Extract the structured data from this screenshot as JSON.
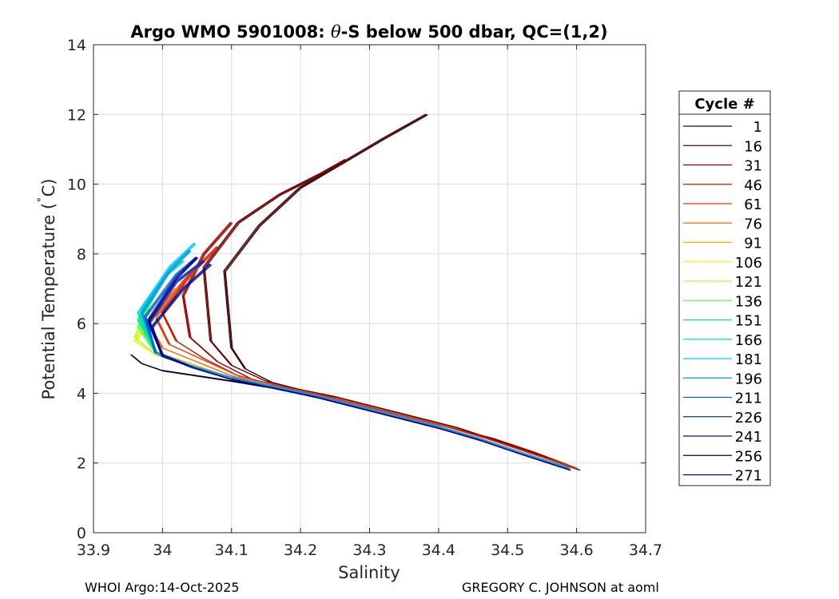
{
  "chart_data": {
    "type": "line",
    "title_prefix": "Argo WMO 5901008: ",
    "title_symbol": "θ",
    "title_suffix": "-S below 500 dbar,  QC=(1,2)",
    "xlabel": "Salinity",
    "ylabel": "Potential Temperature (",
    "ylabel_degree": "˚",
    "ylabel_unit": "C)",
    "xlim": [
      33.9,
      34.7
    ],
    "ylim": [
      0,
      14
    ],
    "xticks": [
      "33.9",
      "34",
      "34.1",
      "34.2",
      "34.3",
      "34.4",
      "34.5",
      "34.6",
      "34.7"
    ],
    "yticks": [
      "0",
      "2",
      "4",
      "6",
      "8",
      "10",
      "12",
      "14"
    ],
    "grid": true,
    "legend": {
      "title": "Cycle #",
      "placement": "right outside",
      "entries": [
        {
          "label": "1",
          "color": "#3b0000"
        },
        {
          "label": "16",
          "color": "#6a0000"
        },
        {
          "label": "31",
          "color": "#9a0000"
        },
        {
          "label": "46",
          "color": "#cc1a00"
        },
        {
          "label": "61",
          "color": "#ee3300"
        },
        {
          "label": "76",
          "color": "#ff6600"
        },
        {
          "label": "91",
          "color": "#ffa500"
        },
        {
          "label": "106",
          "color": "#ffee00"
        },
        {
          "label": "121",
          "color": "#b0ff30"
        },
        {
          "label": "136",
          "color": "#55ff55"
        },
        {
          "label": "151",
          "color": "#00ee88"
        },
        {
          "label": "166",
          "color": "#00ddbb"
        },
        {
          "label": "181",
          "color": "#00ccff"
        },
        {
          "label": "196",
          "color": "#0099dd"
        },
        {
          "label": "211",
          "color": "#0066cc"
        },
        {
          "label": "226",
          "color": "#0033bb"
        },
        {
          "label": "241",
          "color": "#001199"
        },
        {
          "label": "256",
          "color": "#000033"
        },
        {
          "label": "271",
          "color": "#000099"
        }
      ]
    },
    "series": [
      {
        "color": "#3b0000",
        "x": [
          34.604,
          34.56,
          34.5,
          34.44,
          34.38,
          34.32,
          34.26,
          34.2,
          34.16,
          34.12,
          34.1,
          34.09,
          34.14,
          34.2,
          34.26,
          34.32,
          34.383
        ],
        "y": [
          1.8,
          2.1,
          2.5,
          2.9,
          3.2,
          3.5,
          3.8,
          4.1,
          4.3,
          4.7,
          5.3,
          7.5,
          8.8,
          9.9,
          10.6,
          11.3,
          12.0
        ]
      },
      {
        "color": "#6a0000",
        "x": [
          34.6,
          34.55,
          34.49,
          34.43,
          34.37,
          34.31,
          34.25,
          34.2,
          34.15,
          34.1,
          34.07,
          34.06,
          34.11,
          34.17,
          34.23,
          34.266
        ],
        "y": [
          1.85,
          2.2,
          2.6,
          3.0,
          3.3,
          3.6,
          3.9,
          4.1,
          4.35,
          4.8,
          5.5,
          7.6,
          8.9,
          9.7,
          10.3,
          10.7
        ]
      },
      {
        "color": "#9a0000",
        "x": [
          34.6,
          34.54,
          34.48,
          34.42,
          34.36,
          34.3,
          34.24,
          34.18,
          34.13,
          34.08,
          34.04,
          34.03,
          34.06,
          34.1
        ],
        "y": [
          1.85,
          2.3,
          2.7,
          3.0,
          3.3,
          3.6,
          3.9,
          4.15,
          4.4,
          4.9,
          5.6,
          6.8,
          8.0,
          8.9
        ]
      },
      {
        "color": "#cc1a00",
        "x": [
          34.6,
          34.53,
          34.47,
          34.41,
          34.35,
          34.29,
          34.23,
          34.17,
          34.11,
          34.06,
          34.02,
          34.0,
          34.04,
          34.08
        ],
        "y": [
          1.85,
          2.3,
          2.7,
          3.05,
          3.35,
          3.65,
          3.95,
          4.2,
          4.5,
          5.0,
          5.5,
          6.3,
          7.4,
          8.2
        ]
      },
      {
        "color": "#ee3300",
        "x": [
          34.6,
          34.53,
          34.47,
          34.41,
          34.35,
          34.29,
          34.23,
          34.17,
          34.11,
          34.06,
          34.01,
          33.99,
          34.03,
          34.07
        ],
        "y": [
          1.85,
          2.3,
          2.7,
          3.05,
          3.35,
          3.65,
          3.95,
          4.2,
          4.5,
          4.95,
          5.4,
          6.2,
          7.2,
          8.0
        ]
      },
      {
        "color": "#ff6600",
        "x": [
          34.59,
          34.52,
          34.46,
          34.4,
          34.34,
          34.28,
          34.22,
          34.16,
          34.1,
          34.05,
          34.0,
          33.98,
          34.02
        ],
        "y": [
          1.85,
          2.3,
          2.7,
          3.05,
          3.35,
          3.65,
          3.95,
          4.2,
          4.5,
          4.9,
          5.3,
          6.0,
          7.0
        ]
      },
      {
        "color": "#ffa500",
        "x": [
          34.59,
          34.52,
          34.46,
          34.4,
          34.34,
          34.28,
          34.22,
          34.16,
          34.1,
          34.04,
          33.99,
          33.97,
          34.0
        ],
        "y": [
          1.85,
          2.3,
          2.7,
          3.05,
          3.35,
          3.65,
          3.95,
          4.2,
          4.45,
          4.85,
          5.2,
          5.8,
          6.6
        ]
      },
      {
        "color": "#ffee00",
        "x": [
          34.59,
          34.52,
          34.46,
          34.4,
          34.34,
          34.28,
          34.22,
          34.16,
          34.1,
          34.04,
          33.99,
          33.96,
          33.99
        ],
        "y": [
          1.85,
          2.3,
          2.7,
          3.05,
          3.35,
          3.65,
          3.95,
          4.2,
          4.45,
          4.8,
          5.1,
          5.5,
          6.2
        ]
      },
      {
        "color": "#b0ff30",
        "x": [
          34.59,
          34.52,
          34.46,
          34.4,
          34.34,
          34.28,
          34.22,
          34.16,
          34.1,
          34.04,
          33.99,
          33.96,
          33.98
        ],
        "y": [
          1.85,
          2.3,
          2.7,
          3.05,
          3.35,
          3.65,
          3.95,
          4.2,
          4.45,
          4.8,
          5.1,
          5.6,
          6.4
        ]
      },
      {
        "color": "#55ff55",
        "x": [
          34.59,
          34.52,
          34.46,
          34.4,
          34.34,
          34.28,
          34.22,
          34.16,
          34.1,
          34.04,
          33.99,
          33.965,
          33.99
        ],
        "y": [
          1.85,
          2.3,
          2.7,
          3.05,
          3.35,
          3.65,
          3.95,
          4.2,
          4.45,
          4.8,
          5.15,
          5.9,
          6.9
        ]
      },
      {
        "color": "#00ee88",
        "x": [
          34.59,
          34.52,
          34.46,
          34.4,
          34.34,
          34.28,
          34.22,
          34.16,
          34.1,
          34.04,
          33.99,
          33.965,
          34.0
        ],
        "y": [
          1.85,
          2.3,
          2.7,
          3.05,
          3.35,
          3.65,
          3.95,
          4.2,
          4.45,
          4.8,
          5.2,
          6.1,
          7.2
        ]
      },
      {
        "color": "#00ddbb",
        "x": [
          34.59,
          34.52,
          34.46,
          34.4,
          34.34,
          34.28,
          34.22,
          34.16,
          34.1,
          34.04,
          33.99,
          33.965,
          34.0,
          34.03
        ],
        "y": [
          1.85,
          2.3,
          2.7,
          3.05,
          3.35,
          3.65,
          3.95,
          4.2,
          4.45,
          4.8,
          5.2,
          6.3,
          7.3,
          7.8
        ]
      },
      {
        "color": "#00ccff",
        "x": [
          34.59,
          34.52,
          34.46,
          34.4,
          34.34,
          34.28,
          34.22,
          34.16,
          34.1,
          34.04,
          33.99,
          33.97,
          34.01,
          34.047
        ],
        "y": [
          1.85,
          2.3,
          2.7,
          3.05,
          3.35,
          3.65,
          3.95,
          4.2,
          4.45,
          4.8,
          5.2,
          6.4,
          7.6,
          8.3
        ]
      },
      {
        "color": "#0099dd",
        "x": [
          34.59,
          34.52,
          34.46,
          34.4,
          34.34,
          34.28,
          34.22,
          34.16,
          34.1,
          34.04,
          33.99,
          33.97,
          34.01,
          34.04
        ],
        "y": [
          1.85,
          2.3,
          2.7,
          3.05,
          3.35,
          3.65,
          3.95,
          4.2,
          4.45,
          4.8,
          5.2,
          6.3,
          7.5,
          8.1
        ]
      },
      {
        "color": "#0066cc",
        "x": [
          34.59,
          34.52,
          34.46,
          34.4,
          34.34,
          34.28,
          34.22,
          34.16,
          34.1,
          34.04,
          33.99,
          33.975,
          34.02,
          34.05
        ],
        "y": [
          1.8,
          2.25,
          2.65,
          3.0,
          3.3,
          3.6,
          3.9,
          4.15,
          4.4,
          4.75,
          5.15,
          6.2,
          7.4,
          7.9
        ]
      },
      {
        "color": "#0033bb",
        "x": [
          34.59,
          34.52,
          34.46,
          34.4,
          34.34,
          34.28,
          34.22,
          34.16,
          34.1,
          34.05,
          34.0,
          33.98,
          34.02,
          34.06
        ],
        "y": [
          1.8,
          2.25,
          2.65,
          3.0,
          3.3,
          3.6,
          3.9,
          4.15,
          4.4,
          4.7,
          5.1,
          6.0,
          7.2,
          7.8
        ]
      },
      {
        "color": "#001199",
        "x": [
          34.59,
          34.52,
          34.46,
          34.4,
          34.34,
          34.28,
          34.22,
          34.16,
          34.1,
          34.05,
          34.0,
          33.985,
          34.03,
          34.07
        ],
        "y": [
          1.8,
          2.25,
          2.65,
          3.0,
          3.3,
          3.6,
          3.9,
          4.15,
          4.4,
          4.7,
          5.05,
          5.9,
          7.0,
          7.7
        ]
      },
      {
        "color": "#000033",
        "x": [
          34.59,
          34.52,
          34.46,
          34.4,
          34.34,
          34.28,
          34.22,
          34.16,
          34.1,
          34.05,
          34.0,
          33.97,
          33.955
        ],
        "y": [
          1.8,
          2.25,
          2.65,
          3.0,
          3.3,
          3.6,
          3.9,
          4.15,
          4.35,
          4.5,
          4.65,
          4.85,
          5.1
        ]
      },
      {
        "color": "#000099",
        "x": [
          34.59,
          34.52,
          34.46,
          34.4,
          34.34,
          34.28,
          34.22,
          34.16,
          34.1,
          34.05,
          34.0,
          33.98,
          34.02,
          34.05
        ],
        "y": [
          1.8,
          2.25,
          2.65,
          3.0,
          3.3,
          3.6,
          3.9,
          4.15,
          4.4,
          4.7,
          5.1,
          6.1,
          7.3,
          7.9
        ]
      }
    ]
  },
  "footer": {
    "left": "WHOI Argo:14-Oct-2025",
    "right": "GREGORY C. JOHNSON at aoml"
  }
}
